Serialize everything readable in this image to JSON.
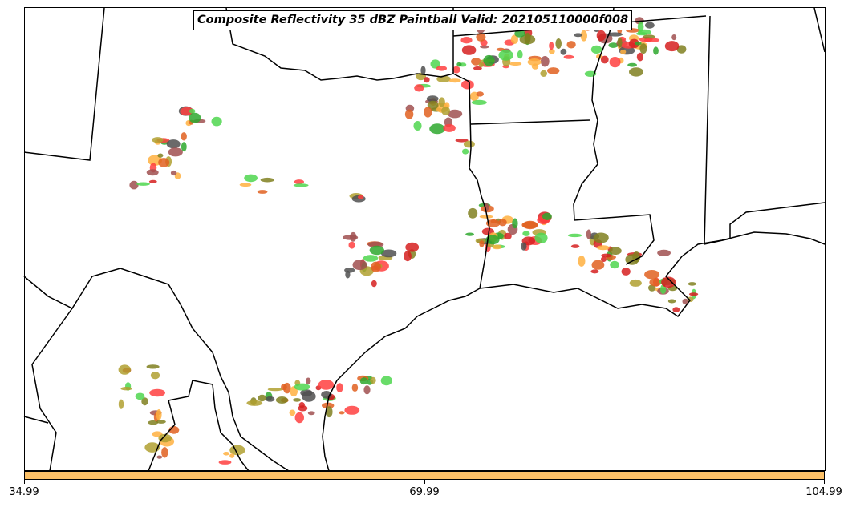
{
  "title": "Composite Reflectivity 35 dBZ Paintball Valid: 202105110000f008",
  "colorbar": {
    "color": "#fcc066",
    "ticks": [
      "34.99",
      "69.99",
      "104.99"
    ]
  },
  "map": {
    "frame_color": "#000000",
    "paint_colors": [
      "#ff4040",
      "#d62020",
      "#2ea82e",
      "#4fd64f",
      "#ffb040",
      "#b0a030",
      "#808020",
      "#a05050",
      "#505050",
      "#e06020"
    ]
  }
}
